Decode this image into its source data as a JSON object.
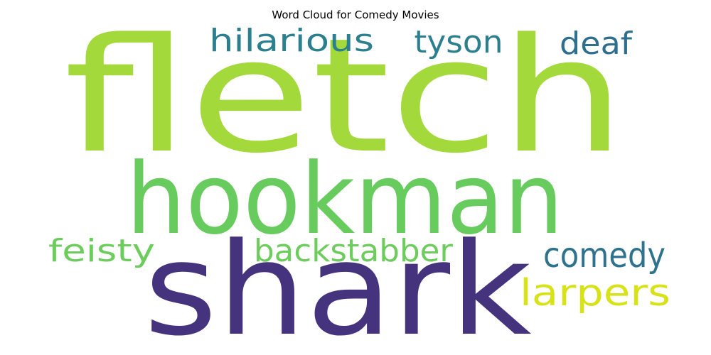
{
  "chart_data": {
    "type": "wordcloud",
    "title": "Word Cloud for Comedy Movies",
    "colormap": "viridis",
    "background": "#ffffff",
    "words": [
      {
        "text": "fletch",
        "weight": 1.0,
        "color": "#a3d93b"
      },
      {
        "text": "hookman",
        "weight": 0.85,
        "color": "#67cb5e"
      },
      {
        "text": "shark",
        "weight": 0.85,
        "color": "#46337e"
      },
      {
        "text": "hilarious",
        "weight": 0.3,
        "color": "#2b7f8e"
      },
      {
        "text": "tyson",
        "weight": 0.3,
        "color": "#2b7f8e"
      },
      {
        "text": "deaf",
        "weight": 0.3,
        "color": "#2e6f8e"
      },
      {
        "text": "feisty",
        "weight": 0.3,
        "color": "#6ccc5c"
      },
      {
        "text": "backstabber",
        "weight": 0.3,
        "color": "#6ccc5c"
      },
      {
        "text": "comedy",
        "weight": 0.3,
        "color": "#2f728e"
      },
      {
        "text": "larpers",
        "weight": 0.3,
        "color": "#d7e219"
      }
    ]
  }
}
